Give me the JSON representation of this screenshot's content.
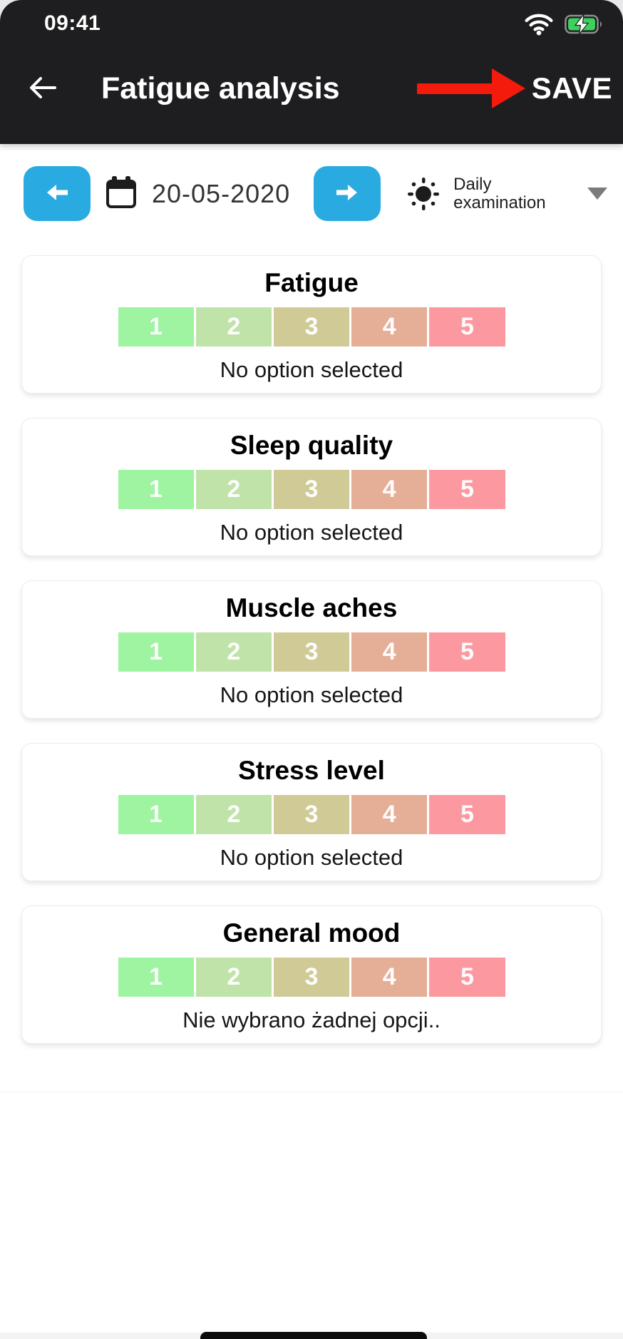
{
  "status_bar": {
    "time": "09:41",
    "wifi_icon": "wifi-icon",
    "battery_icon": "battery-charging-icon"
  },
  "header": {
    "title": "Fatigue analysis",
    "save_label": "SAVE",
    "annotation": "red arrow pointing to SAVE"
  },
  "toolbar": {
    "date": "20-05-2020",
    "prev_day_icon": "arrow-left-icon",
    "next_day_icon": "arrow-right-icon",
    "calendar_icon": "calendar-icon",
    "mode_icon": "sun-icon",
    "mode_label": "Daily examination",
    "dropdown_icon": "chevron-down-icon"
  },
  "cards": [
    {
      "title": "Fatigue",
      "options": [
        "1",
        "2",
        "3",
        "4",
        "5"
      ],
      "caption": "No option selected"
    },
    {
      "title": "Sleep quality",
      "options": [
        "1",
        "2",
        "3",
        "4",
        "5"
      ],
      "caption": "No option selected"
    },
    {
      "title": "Muscle aches",
      "options": [
        "1",
        "2",
        "3",
        "4",
        "5"
      ],
      "caption": "No option selected"
    },
    {
      "title": "Stress level",
      "options": [
        "1",
        "2",
        "3",
        "4",
        "5"
      ],
      "caption": "No option selected"
    },
    {
      "title": "General mood",
      "options": [
        "1",
        "2",
        "3",
        "4",
        "5"
      ],
      "caption": "Nie wybrano żadnej opcji.."
    }
  ],
  "colors": {
    "header_bg": "#1e1e20",
    "accent_blue": "#29abe2",
    "annotation_red": "#f41a0c",
    "battery_green": "#3ed05e",
    "scale": [
      "#9ff4a2",
      "#bfe3a8",
      "#d0ca97",
      "#e4ae97",
      "#fc99a0"
    ]
  }
}
